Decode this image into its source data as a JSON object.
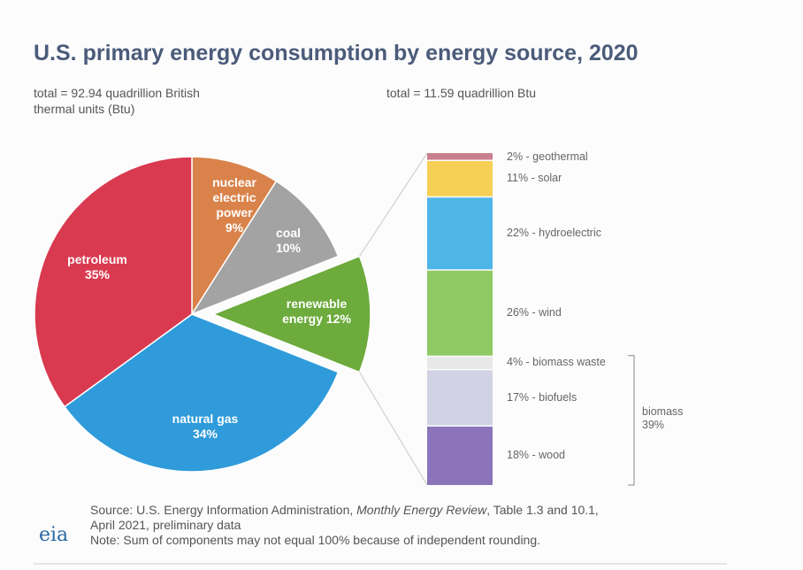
{
  "chart_data": [
    {
      "type": "pie",
      "title": "U.S. primary energy consumption by energy source, 2020",
      "subtitle": "total = 92.94 quadrillion British thermal units (Btu)",
      "categories": [
        "nuclear electric power",
        "coal",
        "renewable energy",
        "natural gas",
        "petroleum"
      ],
      "values": [
        9,
        10,
        12,
        34,
        35
      ],
      "value_labels": [
        "9%",
        "10%",
        "12%",
        "34%",
        "35%"
      ],
      "colors": [
        "#d9834b",
        "#a3a3a3",
        "#6cab3c",
        "#2f9bda",
        "#d93a4f"
      ],
      "exploded": [
        false,
        false,
        true,
        false,
        false
      ]
    },
    {
      "type": "stacked_bar",
      "subtitle": "total = 11.59 quadrillion Btu",
      "values": [
        2,
        11,
        22,
        26,
        4,
        17,
        18
      ],
      "value_labels": [
        "2% - geothermal",
        "11% - solar",
        "22% - hydroelectric",
        "26% - wind",
        "4% - biomass waste",
        "17% - biofuels",
        "18% - wood"
      ],
      "colors": [
        "#c97f8e",
        "#f6cf55",
        "#4fb5e7",
        "#8fca64",
        "#e8e8e8",
        "#d2d2e5",
        "#8b74b9"
      ],
      "annotations": [
        {
          "label": "biomass",
          "value": 39,
          "value_label": "39%"
        }
      ]
    }
  ],
  "footer": {
    "logo": "eia",
    "source": [
      "Source: U.S. Energy Information Administration, ",
      "Monthly Energy Review",
      ", Table 1.3 and 10.1,",
      "April 2021, preliminary data"
    ],
    "note": "Note: Sum of components may not equal 100% because of independent rounding."
  }
}
